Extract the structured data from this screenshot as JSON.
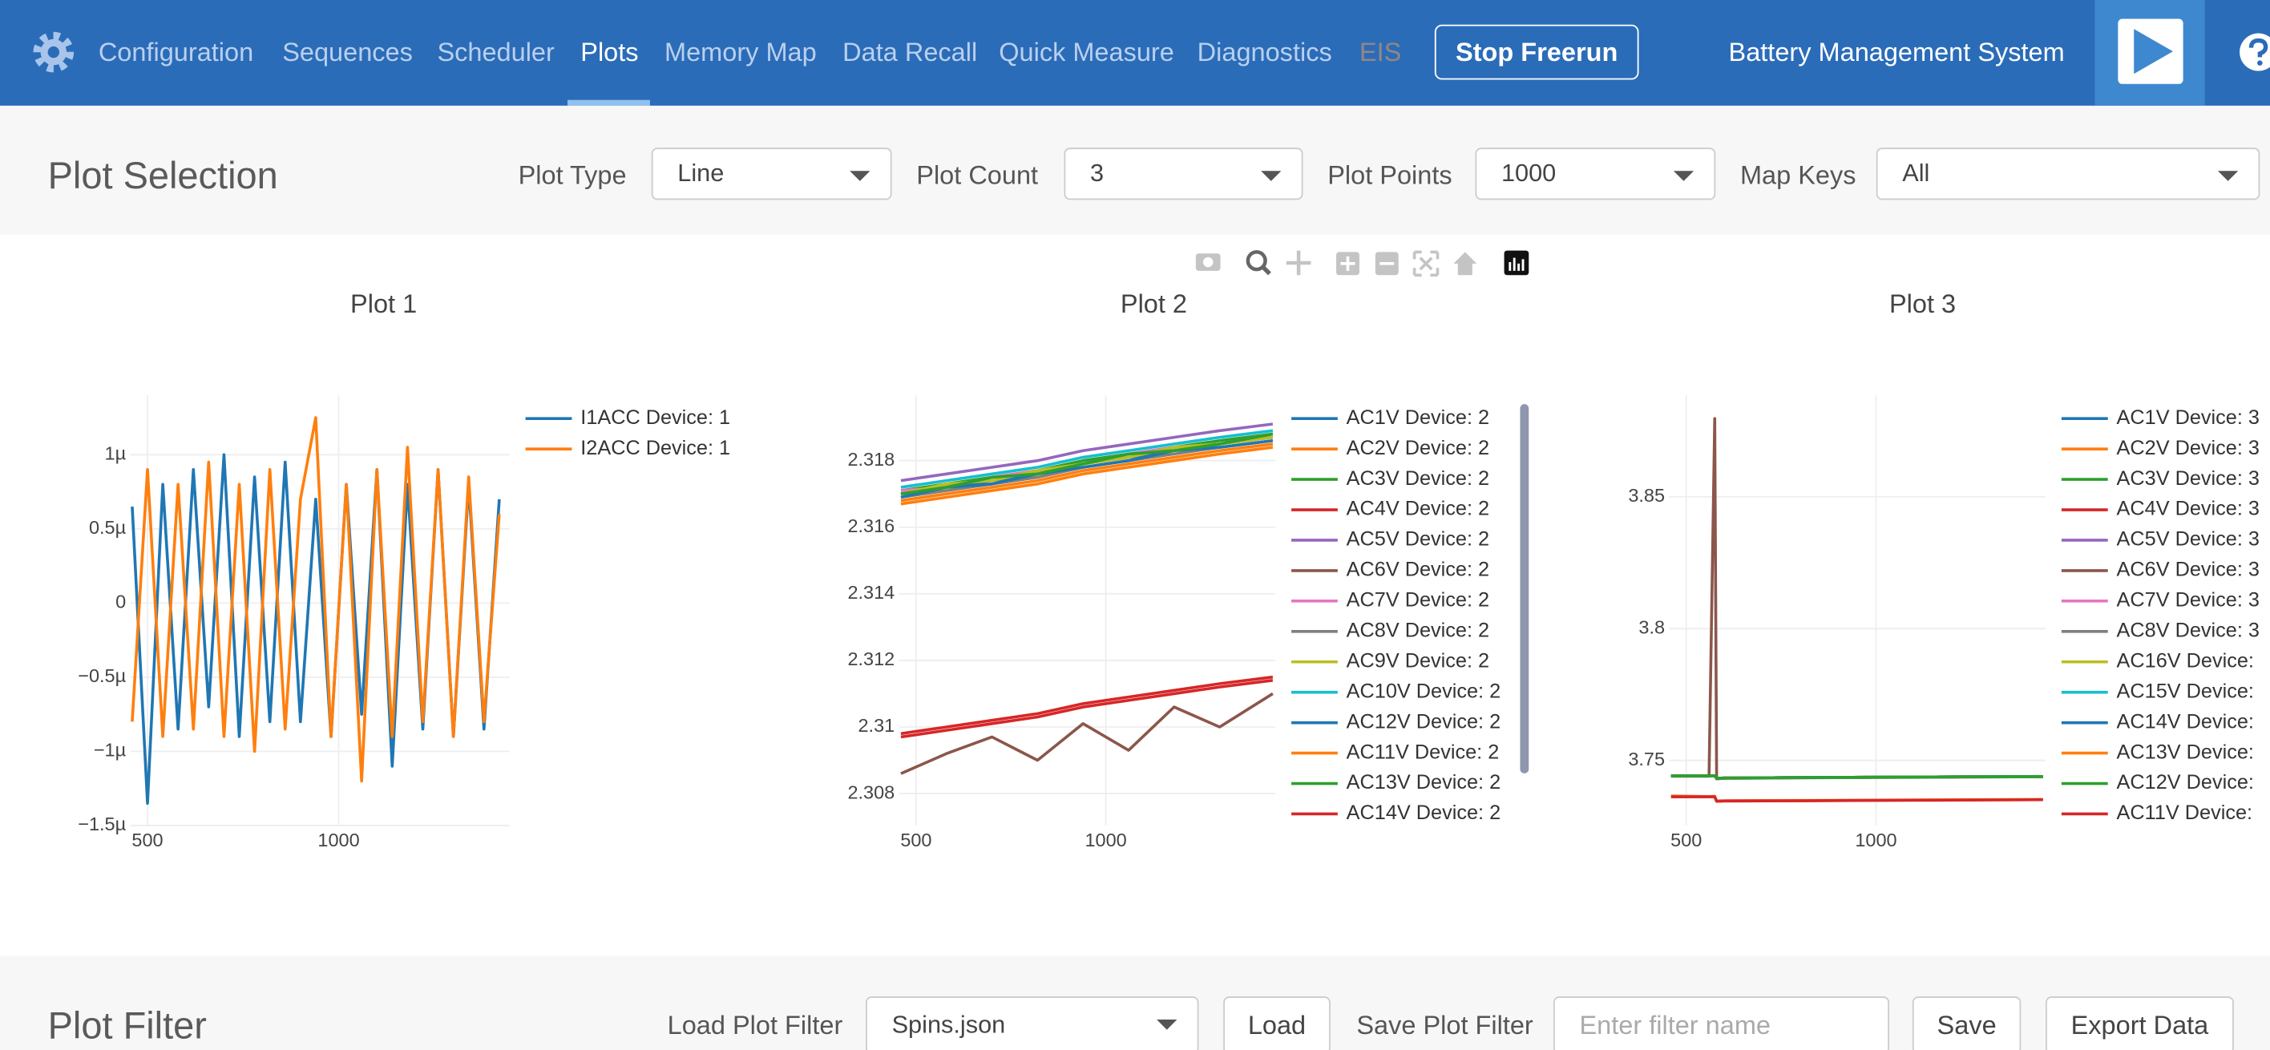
{
  "nav": {
    "items": [
      "Configuration",
      "Sequences",
      "Scheduler",
      "Plots",
      "Memory Map",
      "Data Recall",
      "Quick Measure",
      "Diagnostics",
      "EIS"
    ],
    "stop_button": "Stop Freerun",
    "app_title": "Battery Management System"
  },
  "plot_selection": {
    "title": "Plot Selection",
    "plot_type": {
      "label": "Plot Type",
      "value": "Line"
    },
    "plot_count": {
      "label": "Plot Count",
      "value": "3"
    },
    "plot_points": {
      "label": "Plot Points",
      "value": "1000"
    },
    "map_keys": {
      "label": "Map Keys",
      "value": "All"
    }
  },
  "chart_data": [
    {
      "type": "line",
      "title": "Plot 1",
      "x": [
        460,
        500,
        540,
        580,
        620,
        660,
        700,
        740,
        780,
        820,
        860,
        900,
        940,
        980,
        1020,
        1060,
        1100,
        1140,
        1180,
        1220,
        1260,
        1300,
        1340,
        1380,
        1420
      ],
      "xlim": [
        455,
        1447
      ],
      "xticks": [
        500,
        1000
      ],
      "ylim": [
        -1.5e-06,
        1.4e-06
      ],
      "yticks": [
        {
          "value": 1e-06,
          "label": "1µ"
        },
        {
          "value": 5e-07,
          "label": "0.5µ"
        },
        0,
        {
          "value": -5e-07,
          "label": "−0.5µ"
        },
        {
          "value": -1e-06,
          "label": "−1µ"
        },
        {
          "value": -1.5e-06,
          "label": "−1.5µ"
        }
      ],
      "grid": true,
      "series": [
        {
          "name": "I1ACC Device: 1",
          "color": "#1f77b4",
          "values": [
            6.5e-07,
            -1.35e-06,
            8e-07,
            -8.5e-07,
            9e-07,
            -7e-07,
            1e-06,
            -9e-07,
            8.5e-07,
            -8e-07,
            9.5e-07,
            -8e-07,
            7e-07,
            -9e-07,
            8e-07,
            -7.5e-07,
            9e-07,
            -1.1e-06,
            8e-07,
            -8.5e-07,
            9e-07,
            -9e-07,
            8e-07,
            -8.5e-07,
            7e-07
          ]
        },
        {
          "name": "I2ACC Device: 1",
          "color": "#ff7f0e",
          "values": [
            -8e-07,
            9e-07,
            -9e-07,
            8e-07,
            -8.5e-07,
            9.5e-07,
            -9e-07,
            8e-07,
            -1e-06,
            9e-07,
            -8.5e-07,
            7e-07,
            1.25e-06,
            -9e-07,
            8e-07,
            -1.2e-06,
            9e-07,
            -9e-07,
            1.05e-06,
            -8e-07,
            9e-07,
            -9e-07,
            8.5e-07,
            -8e-07,
            6e-07
          ]
        }
      ]
    },
    {
      "type": "line",
      "title": "Plot 2",
      "x": [
        460,
        580,
        700,
        820,
        940,
        1060,
        1180,
        1300,
        1440
      ],
      "xlim": [
        455,
        1447
      ],
      "xticks": [
        500,
        1000
      ],
      "ylim": [
        2.30704,
        2.31996
      ],
      "yticks": [
        2.318,
        2.316,
        2.314,
        2.312,
        2.31,
        2.308
      ],
      "grid": true,
      "series": [
        {
          "name": "AC1V Device: 2",
          "color": "#1f77b4",
          "values": [
            2.317,
            2.3172,
            2.3174,
            2.3176,
            2.3179,
            2.3181,
            2.3183,
            2.3185,
            2.3187
          ]
        },
        {
          "name": "AC2V Device: 2",
          "color": "#ff7f0e",
          "values": [
            2.3168,
            2.317,
            2.3172,
            2.3174,
            2.3177,
            2.3179,
            2.3181,
            2.3183,
            2.3185
          ]
        },
        {
          "name": "AC3V Device: 2",
          "color": "#2ca02c",
          "values": [
            2.3171,
            2.3173,
            2.3175,
            2.3177,
            2.318,
            2.3182,
            2.3184,
            2.3186,
            2.3188
          ]
        },
        {
          "name": "AC4V Device: 2",
          "color": "#d62728",
          "values": [
            2.3098,
            2.31,
            2.3102,
            2.3104,
            2.3107,
            2.3109,
            2.3111,
            2.3113,
            2.3115
          ]
        },
        {
          "name": "AC5V Device: 2",
          "color": "#9467bd",
          "values": [
            2.3174,
            2.3176,
            2.3178,
            2.318,
            2.3183,
            2.3185,
            2.3187,
            2.3189,
            2.3191
          ]
        },
        {
          "name": "AC6V Device: 2",
          "color": "#8c564b",
          "values": [
            2.3086,
            2.3092,
            2.3097,
            2.309,
            2.3101,
            2.3093,
            2.3106,
            2.31,
            2.311
          ]
        },
        {
          "name": "AC7V Device: 2",
          "color": "#e377c2",
          "values": [
            2.3171,
            2.3172,
            2.3175,
            2.3177,
            2.3179,
            2.3182,
            2.3184,
            2.3185,
            2.3188
          ]
        },
        {
          "name": "AC8V Device: 2",
          "color": "#7f7f7f",
          "values": [
            2.3169,
            2.3171,
            2.3173,
            2.3175,
            2.3178,
            2.318,
            2.3182,
            2.3184,
            2.3186
          ]
        },
        {
          "name": "AC9V Device: 2",
          "color": "#bcbd22",
          "values": [
            2.317,
            2.3173,
            2.3174,
            2.3177,
            2.3179,
            2.3181,
            2.3184,
            2.3185,
            2.3187
          ]
        },
        {
          "name": "AC10V Device: 2",
          "color": "#17becf",
          "values": [
            2.3172,
            2.3174,
            2.3176,
            2.3178,
            2.3181,
            2.3183,
            2.3185,
            2.3187,
            2.3189
          ]
        },
        {
          "name": "AC12V Device: 2",
          "color": "#1f77b4",
          "values": [
            2.3169,
            2.3172,
            2.3173,
            2.3176,
            2.3178,
            2.318,
            2.3183,
            2.3184,
            2.3186
          ]
        },
        {
          "name": "AC11V Device: 2",
          "color": "#ff7f0e",
          "values": [
            2.3167,
            2.3169,
            2.3171,
            2.3173,
            2.3176,
            2.3178,
            2.318,
            2.3182,
            2.3184
          ]
        },
        {
          "name": "AC13V Device: 2",
          "color": "#2ca02c",
          "values": [
            2.317,
            2.3172,
            2.3175,
            2.3176,
            2.3179,
            2.3182,
            2.3183,
            2.3185,
            2.3188
          ]
        },
        {
          "name": "AC14V Device: 2",
          "color": "#d62728",
          "values": [
            2.3097,
            2.3099,
            2.3101,
            2.3103,
            2.3106,
            2.3108,
            2.311,
            2.3112,
            2.3114
          ]
        }
      ]
    },
    {
      "type": "line",
      "title": "Plot 3",
      "x": [
        460,
        560,
        575,
        580,
        600,
        800,
        1100,
        1440
      ],
      "xlim": [
        455,
        1447
      ],
      "xticks": [
        500,
        1000
      ],
      "ylim": [
        3.7253,
        3.8885
      ],
      "yticks": [
        3.85,
        3.8,
        3.75
      ],
      "grid": true,
      "series": [
        {
          "name": "AC1V Device: 3",
          "color": "#1f77b4",
          "values": [
            3.7442,
            3.7442,
            3.7442,
            3.7432,
            3.7433,
            3.7435,
            3.7437,
            3.7439
          ]
        },
        {
          "name": "AC2V Device: 3",
          "color": "#ff7f0e",
          "values": [
            3.7365,
            3.7363,
            3.7364,
            3.7346,
            3.7347,
            3.7348,
            3.735,
            3.7352
          ]
        },
        {
          "name": "AC3V Device: 3",
          "color": "#2ca02c",
          "values": [
            3.7442,
            3.7442,
            3.7442,
            3.7432,
            3.7433,
            3.7435,
            3.7437,
            3.7439
          ]
        },
        {
          "name": "AC4V Device: 3",
          "color": "#d62728",
          "values": [
            3.7442,
            3.7442,
            3.7442,
            3.7432,
            3.7433,
            3.7435,
            3.7437,
            3.7439
          ]
        },
        {
          "name": "AC5V Device: 3",
          "color": "#9467bd",
          "values": [
            3.7442,
            3.7442,
            3.7442,
            3.7432,
            3.7433,
            3.7435,
            3.7437,
            3.7439
          ]
        },
        {
          "name": "AC6V Device: 3",
          "color": "#8c564b",
          "values": [
            3.744,
            3.744,
            3.8797,
            3.743,
            3.7432,
            3.7434,
            3.7436,
            3.7438
          ]
        },
        {
          "name": "AC7V Device: 3",
          "color": "#e377c2",
          "values": [
            3.7442,
            3.7442,
            3.7442,
            3.7432,
            3.7433,
            3.7435,
            3.7437,
            3.7439
          ]
        },
        {
          "name": "AC8V Device: 3",
          "color": "#7f7f7f",
          "values": [
            3.7442,
            3.7442,
            3.7442,
            3.7432,
            3.7433,
            3.7435,
            3.7437,
            3.7439
          ]
        },
        {
          "name": "AC16V Device:",
          "color": "#bcbd22",
          "values": [
            3.7442,
            3.7442,
            3.7442,
            3.7432,
            3.7433,
            3.7435,
            3.7437,
            3.7439
          ]
        },
        {
          "name": "AC15V Device:",
          "color": "#17becf",
          "values": [
            3.7442,
            3.7442,
            3.7442,
            3.7432,
            3.7433,
            3.7435,
            3.7437,
            3.7439
          ]
        },
        {
          "name": "AC14V Device:",
          "color": "#1f77b4",
          "values": [
            3.7442,
            3.7442,
            3.7442,
            3.7432,
            3.7433,
            3.7435,
            3.7437,
            3.7439
          ]
        },
        {
          "name": "AC13V Device:",
          "color": "#ff7f0e",
          "values": [
            3.7362,
            3.7362,
            3.7362,
            3.7345,
            3.7346,
            3.7347,
            3.7349,
            3.7351
          ]
        },
        {
          "name": "AC12V Device:",
          "color": "#2ca02c",
          "values": [
            3.7442,
            3.7442,
            3.7442,
            3.7432,
            3.7433,
            3.7435,
            3.7437,
            3.7439
          ]
        },
        {
          "name": "AC11V Device:",
          "color": "#d62728",
          "values": [
            3.7362,
            3.7362,
            3.7362,
            3.7345,
            3.7346,
            3.7347,
            3.7349,
            3.7351
          ]
        }
      ]
    }
  ],
  "plot_filter": {
    "title": "Plot Filter",
    "load_label": "Load Plot Filter",
    "load_value": "Spins.json",
    "load_button": "Load",
    "save_label": "Save Plot Filter",
    "save_placeholder": "Enter filter name",
    "save_button": "Save",
    "export_button": "Export Data"
  }
}
